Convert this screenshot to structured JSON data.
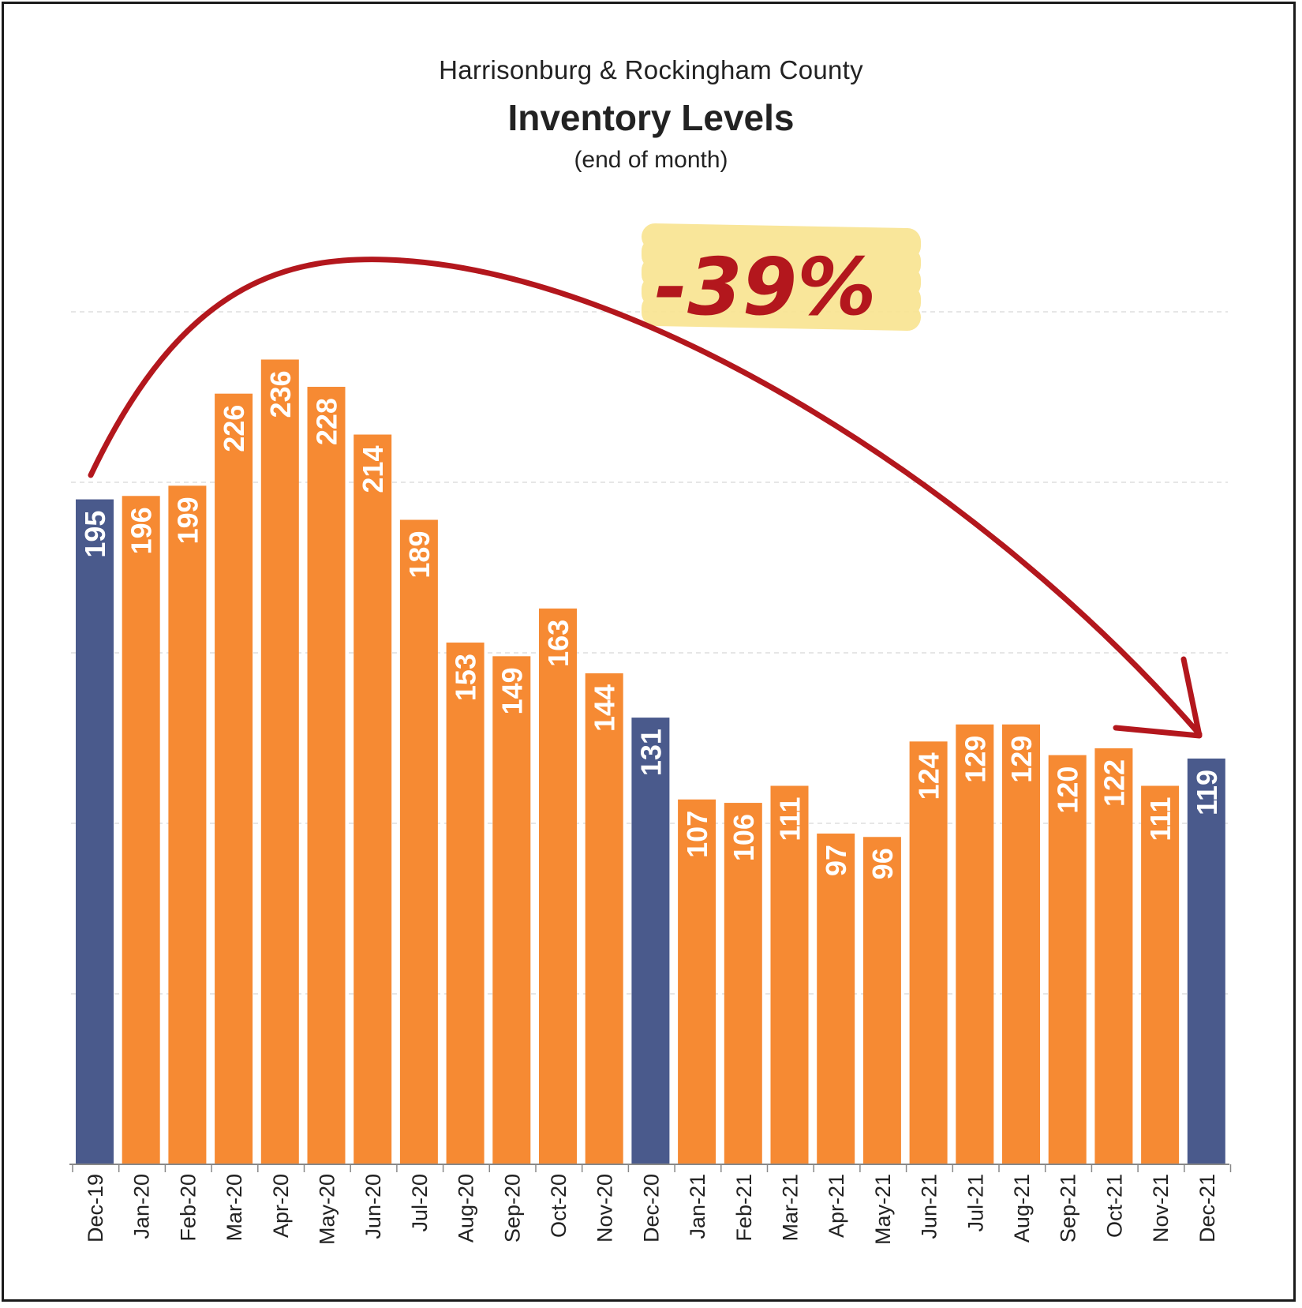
{
  "header": {
    "region": "Harrisonburg & Rockingham County",
    "title": "Inventory Levels",
    "note": "(end of month)"
  },
  "annotation": {
    "change_label": "-39%",
    "highlight_color": "#f8e38f",
    "arrow_color": "#b3171d"
  },
  "colors": {
    "december_bar": "#4a5a8c",
    "month_bar": "#f68a33",
    "value_label": "#ffffff",
    "gridline": "#dddddd",
    "axis": "#888888"
  },
  "chart_data": {
    "type": "bar",
    "title": "Inventory Levels",
    "subtitle": "Harrisonburg & Rockingham County (end of month)",
    "categories": [
      "Dec-19",
      "Jan-20",
      "Feb-20",
      "Mar-20",
      "Apr-20",
      "May-20",
      "Jun-20",
      "Jul-20",
      "Aug-20",
      "Sep-20",
      "Oct-20",
      "Nov-20",
      "Dec-20",
      "Jan-21",
      "Feb-21",
      "Mar-21",
      "Apr-21",
      "May-21",
      "Jun-21",
      "Jul-21",
      "Aug-21",
      "Sep-21",
      "Oct-21",
      "Nov-21",
      "Dec-21"
    ],
    "values": [
      195,
      196,
      199,
      226,
      236,
      228,
      214,
      189,
      153,
      149,
      163,
      144,
      131,
      107,
      106,
      111,
      97,
      96,
      124,
      129,
      129,
      120,
      122,
      111,
      119
    ],
    "highlighted": [
      "Dec-19",
      "Dec-20",
      "Dec-21"
    ],
    "ylim": [
      0,
      250
    ],
    "gridlines": [
      50,
      100,
      150,
      200,
      250
    ],
    "grid": true,
    "data_labels": "inside-top-rotated"
  }
}
